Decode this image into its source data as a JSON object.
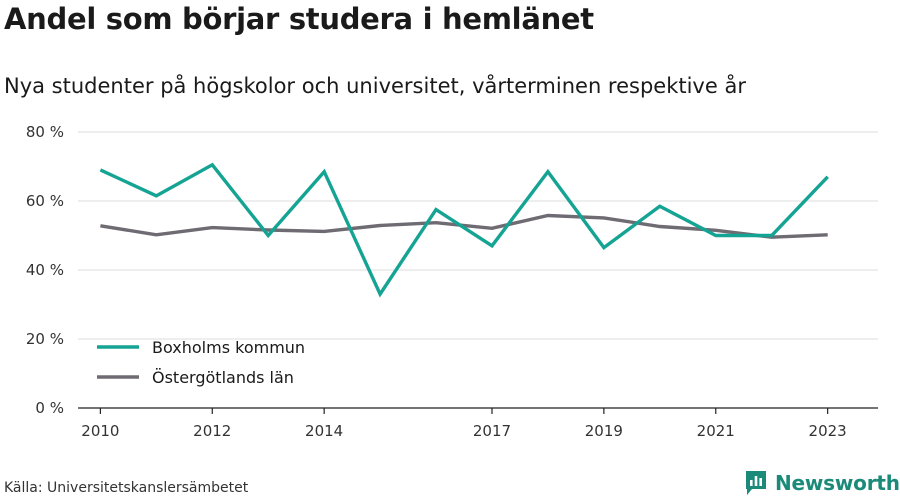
{
  "title": "Andel som börjar studera i hemlänet",
  "subtitle": "Nya studenter på högskolor och universitet, vårterminen respektive år",
  "source": "Källa: Universitetskanslersämbetet",
  "brand": "Newsworthy",
  "chart_data": {
    "type": "line",
    "title": "Andel som börjar studera i hemlänet",
    "subtitle": "Nya studenter på högskolor och universitet, vårterminen respektive år",
    "x": [
      2010,
      2011,
      2012,
      2013,
      2014,
      2015,
      2016,
      2017,
      2018,
      2019,
      2020,
      2021,
      2022,
      2023
    ],
    "x_tick_values": [
      2010,
      2012,
      2014,
      2017,
      2019,
      2021,
      2023
    ],
    "x_tick_labels": [
      "2010",
      "2012",
      "2014",
      "2017",
      "2019",
      "2021",
      "2023"
    ],
    "y_tick_values": [
      0,
      20,
      40,
      60,
      80
    ],
    "y_tick_labels": [
      "0 %",
      "20 %",
      "40 %",
      "60 %",
      "80 %"
    ],
    "ylim": [
      0,
      80
    ],
    "grid": "horizontal",
    "legend_position": "bottom-left",
    "series": [
      {
        "name": "Boxholms kommun",
        "color": "#15a394",
        "values": [
          69,
          61.5,
          70.5,
          50,
          68.5,
          33,
          57.5,
          47,
          68.5,
          46.5,
          58.5,
          50,
          50,
          67
        ]
      },
      {
        "name": "Östergötlands län",
        "color": "#6e6b72",
        "values": [
          52.8,
          50.2,
          52.3,
          51.6,
          51.2,
          52.9,
          53.7,
          52.1,
          55.8,
          55.1,
          52.6,
          51.5,
          49.5,
          50.2
        ]
      }
    ]
  }
}
